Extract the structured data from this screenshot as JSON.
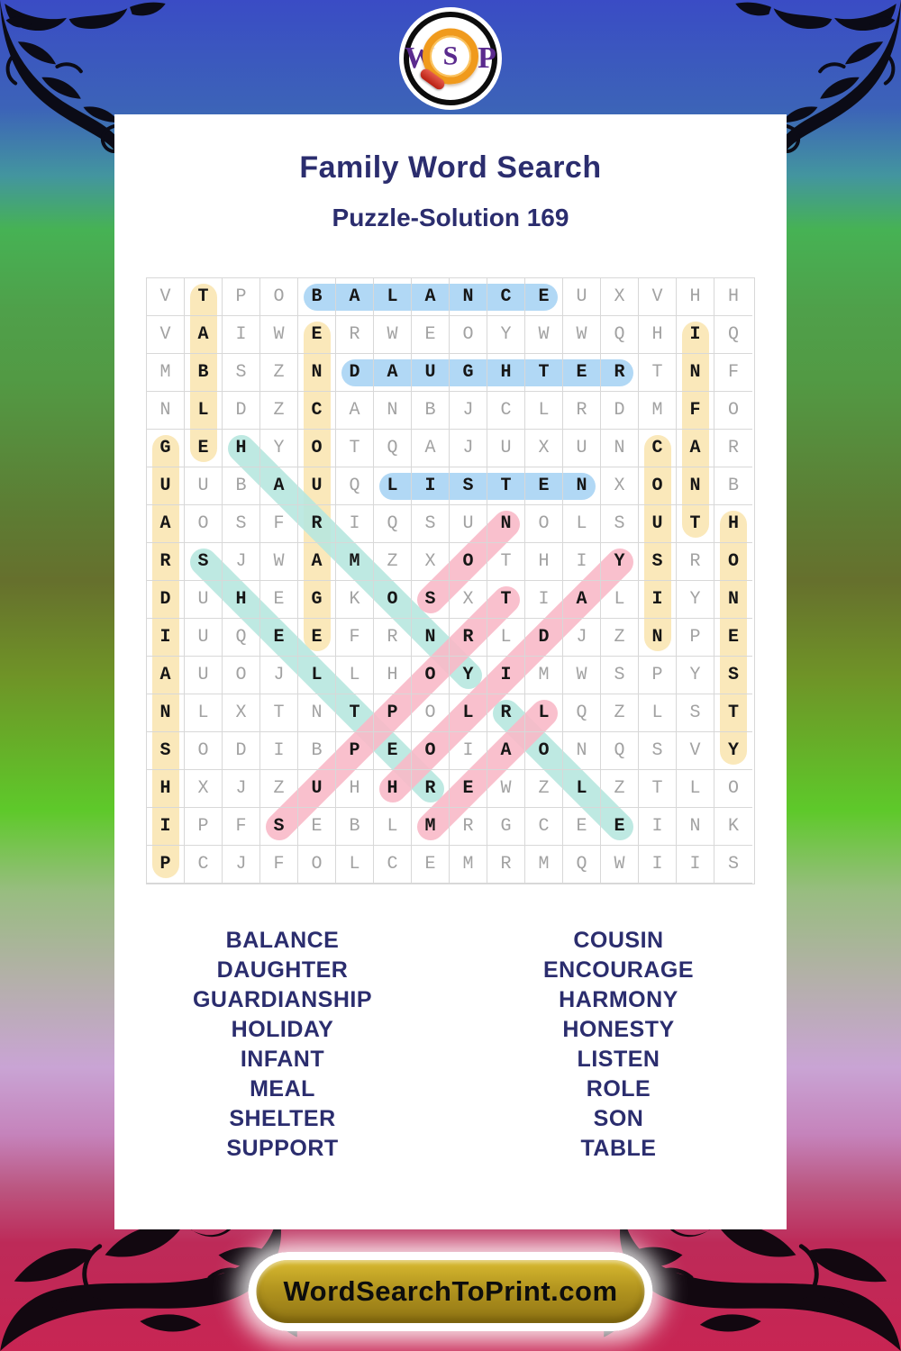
{
  "logo": {
    "letters": [
      "W",
      "S",
      "P"
    ]
  },
  "header": {
    "title": "Family Word Search",
    "subtitle": "Puzzle-Solution 169"
  },
  "grid": {
    "size": 16,
    "rows": [
      "VTPOBALANCEUXVHH",
      "VAIWERWEOYWWQHIQ",
      "MBSZNDAUGHTERTNF",
      "NLDZCANBJCLRDMFO",
      "GEHYOTQAJUXUNCAR",
      "UUBAUQLISTENXONB",
      "AOSFRIQSUNOLSUTH",
      "RSJWAMZXOTHIYSRO",
      "DUHEGKOSXTIALIYN",
      "IUQEEFRNRLDJZNPE",
      "AUOJLLHOYIMWSPYS",
      "NLXTNTPOLRLQZLST",
      "SODIBPEOIAONQSVY",
      "HXJZUHHREWZLZTLO",
      "IPFSEBLMRGCEEINK",
      "PCJFOLCEMRMQWIIS"
    ],
    "highlights": [
      {
        "word": "TABLE",
        "color": "yellow",
        "from": [
          1,
          2
        ],
        "to": [
          5,
          2
        ]
      },
      {
        "word": "ENCOURAGE",
        "color": "yellow",
        "from": [
          2,
          5
        ],
        "to": [
          10,
          5
        ]
      },
      {
        "word": "GUARDIANSHIP",
        "color": "yellow",
        "from": [
          5,
          1
        ],
        "to": [
          16,
          1
        ]
      },
      {
        "word": "COUSIN",
        "color": "yellow",
        "from": [
          5,
          14
        ],
        "to": [
          10,
          14
        ]
      },
      {
        "word": "INFANT",
        "color": "yellow",
        "from": [
          2,
          15
        ],
        "to": [
          7,
          15
        ]
      },
      {
        "word": "HONESTY",
        "color": "yellow",
        "from": [
          7,
          16
        ],
        "to": [
          13,
          16
        ]
      },
      {
        "word": "BALANCE",
        "color": "blue",
        "from": [
          1,
          5
        ],
        "to": [
          1,
          11
        ]
      },
      {
        "word": "DAUGHTER",
        "color": "blue",
        "from": [
          3,
          6
        ],
        "to": [
          3,
          13
        ]
      },
      {
        "word": "LISTEN",
        "color": "blue",
        "from": [
          6,
          7
        ],
        "to": [
          6,
          12
        ]
      },
      {
        "word": "HARMONY",
        "color": "teal",
        "from": [
          5,
          3
        ],
        "to": [
          11,
          9
        ]
      },
      {
        "word": "SHELTER",
        "color": "teal",
        "from": [
          8,
          2
        ],
        "to": [
          14,
          8
        ]
      },
      {
        "word": "ROLE",
        "color": "teal",
        "from": [
          12,
          10
        ],
        "to": [
          15,
          13
        ]
      },
      {
        "word": "SON",
        "color": "pink",
        "from": [
          9,
          8
        ],
        "to": [
          7,
          10
        ]
      },
      {
        "word": "HOLIDAY",
        "color": "pink",
        "from": [
          14,
          7
        ],
        "to": [
          8,
          13
        ]
      },
      {
        "word": "SUPPORT",
        "color": "pink",
        "from": [
          15,
          4
        ],
        "to": [
          9,
          10
        ]
      },
      {
        "word": "MEAL",
        "color": "pink",
        "from": [
          15,
          8
        ],
        "to": [
          12,
          11
        ]
      }
    ]
  },
  "word_list": {
    "left": [
      "BALANCE",
      "DAUGHTER",
      "GUARDIANSHIP",
      "HOLIDAY",
      "INFANT",
      "MEAL",
      "SHELTER",
      "SUPPORT"
    ],
    "right": [
      "COUSIN",
      "ENCOURAGE",
      "HARMONY",
      "HONESTY",
      "LISTEN",
      "ROLE",
      "SON",
      "TABLE"
    ]
  },
  "footer": {
    "site": "WordSearchToPrint.com"
  },
  "colors": {
    "highlight_blue": "#a9d4f4",
    "highlight_yellow": "#fae6b2",
    "highlight_teal": "#b7e7df",
    "highlight_pink": "#f8b9c8",
    "navy_text": "#2b2d6e",
    "button_gold": "#b3951f"
  }
}
